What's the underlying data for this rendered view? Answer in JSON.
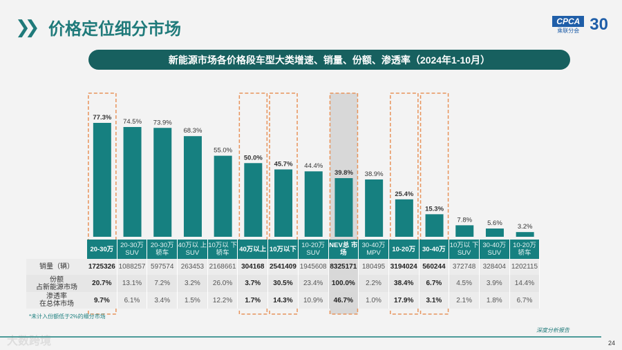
{
  "header": {
    "title": "价格定位细分市场",
    "logo_text": "CPCA",
    "logo_sub": "乘联分会",
    "anniversary": "30"
  },
  "banner": "新能源市场各价格段车型大类增速、销量、份额、渗透率（2024年1-10月）",
  "chart_data": {
    "type": "bar",
    "categories": [
      "20-30万",
      "20-30万 SUV",
      "20-30万 轿车",
      "40万以 上 SUV",
      "10万以 下 轿车",
      "40万以上",
      "10万以下",
      "10-20万 SUV",
      "NEV总 市场",
      "30-40万 MPV",
      "10-20万",
      "30-40万",
      "10万以 下 SUV",
      "30-40万 SUV",
      "10-20万 轿车"
    ],
    "values": [
      77.3,
      74.5,
      73.9,
      68.3,
      55.0,
      50.0,
      45.7,
      44.4,
      39.8,
      38.9,
      25.4,
      15.3,
      7.8,
      5.6,
      3.2
    ],
    "value_labels": [
      "77.3%",
      "74.5%",
      "73.9%",
      "68.3%",
      "55.0%",
      "50.0%",
      "45.7%",
      "44.4%",
      "39.8%",
      "38.9%",
      "25.4%",
      "15.3%",
      "7.8%",
      "5.6%",
      "3.2%"
    ],
    "highlighted": [
      0,
      5,
      6,
      8,
      10,
      11
    ],
    "ylim": [
      0,
      80
    ],
    "bar_color": "#168080",
    "highlight_color": "#e8935a",
    "table": {
      "row_labels": [
        "销量（辆）",
        "份额\n占新能源市场",
        "渗透率\n在总体市场"
      ],
      "sales": [
        "1725326",
        "1088257",
        "597574",
        "263453",
        "2168661",
        "304168",
        "2541409",
        "1945608",
        "8325171",
        "180495",
        "3194024",
        "560244",
        "372748",
        "328404",
        "1202115"
      ],
      "share": [
        "20.7%",
        "13.1%",
        "7.2%",
        "3.2%",
        "26.0%",
        "3.7%",
        "30.5%",
        "23.4%",
        "100.0%",
        "2.2%",
        "38.4%",
        "6.7%",
        "4.5%",
        "3.9%",
        "14.4%"
      ],
      "penetration": [
        "9.7%",
        "6.1%",
        "3.4%",
        "1.5%",
        "12.2%",
        "1.7%",
        "14.3%",
        "10.9%",
        "46.7%",
        "1.0%",
        "17.9%",
        "3.1%",
        "2.1%",
        "1.8%",
        "6.7%"
      ]
    }
  },
  "footnote": "*未计入份额低于2%的细分市场",
  "watermark": "大数跨境",
  "footer": {
    "report": "深度分析报告",
    "page": "24"
  }
}
